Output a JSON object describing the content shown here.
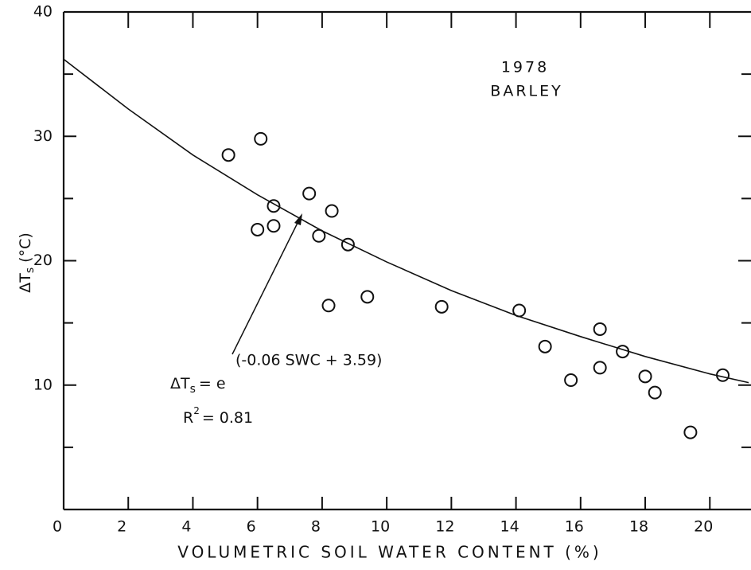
{
  "chart_data": {
    "type": "scatter",
    "ylabel": {
      "base": "ΔT",
      "sub": "s",
      "rest": "(°C)"
    },
    "xlabel": "VOLUMETRIC SOIL WATER CONTENT (%)",
    "annotations": {
      "year": "1978",
      "crop": "BARLEY"
    },
    "equation": {
      "lhs": "ΔT",
      "lhs_sub": "s",
      "rhs": "= e",
      "exponent": "(-0.06 SWC + 3.59)"
    },
    "r2": {
      "base": "R",
      "sup": "2",
      "rest": "= 0.81"
    },
    "x": [
      5.1,
      6.1,
      6.0,
      6.5,
      6.5,
      7.6,
      7.9,
      8.3,
      8.2,
      8.8,
      9.4,
      11.7,
      14.1,
      14.9,
      15.7,
      16.6,
      16.6,
      17.3,
      18.0,
      18.3,
      19.4,
      20.4
    ],
    "values": [
      28.5,
      29.8,
      22.5,
      24.4,
      22.8,
      25.4,
      22.0,
      24.0,
      16.4,
      21.3,
      17.1,
      16.3,
      16.0,
      13.1,
      10.4,
      14.5,
      11.4,
      12.7,
      10.7,
      9.4,
      6.2,
      10.8
    ],
    "fit": {
      "x": [
        0,
        2,
        4,
        6,
        8,
        10,
        12,
        14,
        16,
        18,
        20,
        21.2
      ],
      "values": [
        36.2,
        32.2,
        28.5,
        25.3,
        22.4,
        19.9,
        17.6,
        15.6,
        13.9,
        12.3,
        10.9,
        10.2
      ]
    },
    "color": "#111111",
    "xlim": [
      0,
      21.2
    ],
    "ylim": [
      0,
      40
    ],
    "xticks": [
      0,
      2,
      4,
      6,
      8,
      10,
      12,
      14,
      16,
      18,
      20
    ],
    "yticks": [
      10,
      20,
      30,
      40
    ],
    "yminorticks": [
      5,
      15,
      25,
      35
    ]
  }
}
